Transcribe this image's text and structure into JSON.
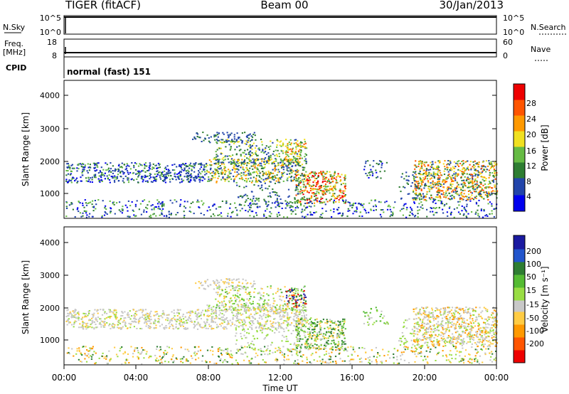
{
  "header": {
    "radar": "TIGER (fitACF)",
    "beam": "Beam 00",
    "date": "30/Jan/2013"
  },
  "top_panels": {
    "nsky_label": "N.Sky",
    "nsky_ticks": [
      "10^5",
      "10^0"
    ],
    "nsearch_label": "N.Search",
    "nsearch_ticks": [
      "10^5",
      "10^0"
    ],
    "freq_label": "Freq.",
    "freq_unit": "[MHz]",
    "freq_ticks": [
      "18",
      "8"
    ],
    "nave_label": "Nave",
    "nave_ticks": [
      "60",
      "0"
    ],
    "cpid_label": "CPID",
    "cpid_value": "normal (fast) 151"
  },
  "chart_data": [
    {
      "type": "heatmap",
      "ylabel": "Slant Range [km]",
      "yticks": [
        "4000",
        "3000",
        "2000",
        "1000"
      ],
      "ylim": [
        180,
        4500
      ],
      "colorbar_label": "Power [dB]",
      "colorbar_ticks": [
        "28",
        "24",
        "20",
        "16",
        "12",
        "8",
        "4"
      ],
      "colorbar_range": [
        0,
        30
      ],
      "colorbar_colors": [
        "#0000ee",
        "#2244aa",
        "#2e7d32",
        "#66bb44",
        "#f0e020",
        "#ff9900",
        "#ff5500",
        "#ee0000"
      ]
    },
    {
      "type": "heatmap",
      "ylabel": "Slant Range [km]",
      "yticks": [
        "4000",
        "3000",
        "2000",
        "1000"
      ],
      "ylim": [
        180,
        4500
      ],
      "xlabel": "Time UT",
      "xticks": [
        "00:00",
        "04:00",
        "08:00",
        "12:00",
        "16:00",
        "20:00",
        "00:00"
      ],
      "colorbar_label": "Velocity [m s⁻¹]",
      "colorbar_ticks": [
        "200",
        "100",
        "50",
        "15",
        "-15",
        "-50",
        "-100",
        "-200"
      ],
      "colorbar_colors": [
        "#1a1aa0",
        "#2255cc",
        "#2e7d32",
        "#55bb33",
        "#99dd44",
        "#c8c8c8",
        "#ffcc44",
        "#ff9900",
        "#ff5500",
        "#ee0000"
      ]
    }
  ]
}
